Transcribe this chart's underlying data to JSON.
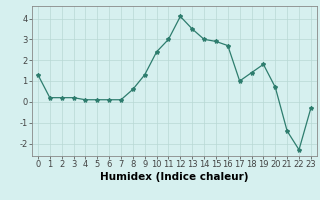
{
  "x": [
    0,
    1,
    2,
    3,
    4,
    5,
    6,
    7,
    8,
    9,
    10,
    11,
    12,
    13,
    14,
    15,
    16,
    17,
    18,
    19,
    20,
    21,
    22,
    23
  ],
  "y": [
    1.3,
    0.2,
    0.2,
    0.2,
    0.1,
    0.1,
    0.1,
    0.1,
    0.6,
    1.3,
    2.4,
    3.0,
    4.1,
    3.5,
    3.0,
    2.9,
    2.7,
    1.0,
    1.4,
    1.8,
    0.7,
    -1.4,
    -2.3,
    -0.3
  ],
  "line_color": "#2e7d6e",
  "marker": "*",
  "marker_size": 3,
  "bg_color": "#d6f0ef",
  "grid_color": "#b8d8d4",
  "xlabel": "Humidex (Indice chaleur)",
  "xlabel_fontsize": 7.5,
  "xlim": [
    -0.5,
    23.5
  ],
  "ylim": [
    -2.6,
    4.6
  ],
  "yticks": [
    -2,
    -1,
    0,
    1,
    2,
    3,
    4
  ],
  "xticks": [
    0,
    1,
    2,
    3,
    4,
    5,
    6,
    7,
    8,
    9,
    10,
    11,
    12,
    13,
    14,
    15,
    16,
    17,
    18,
    19,
    20,
    21,
    22,
    23
  ],
  "tick_fontsize": 6.0,
  "spine_color": "#888888",
  "tick_color": "#444444"
}
